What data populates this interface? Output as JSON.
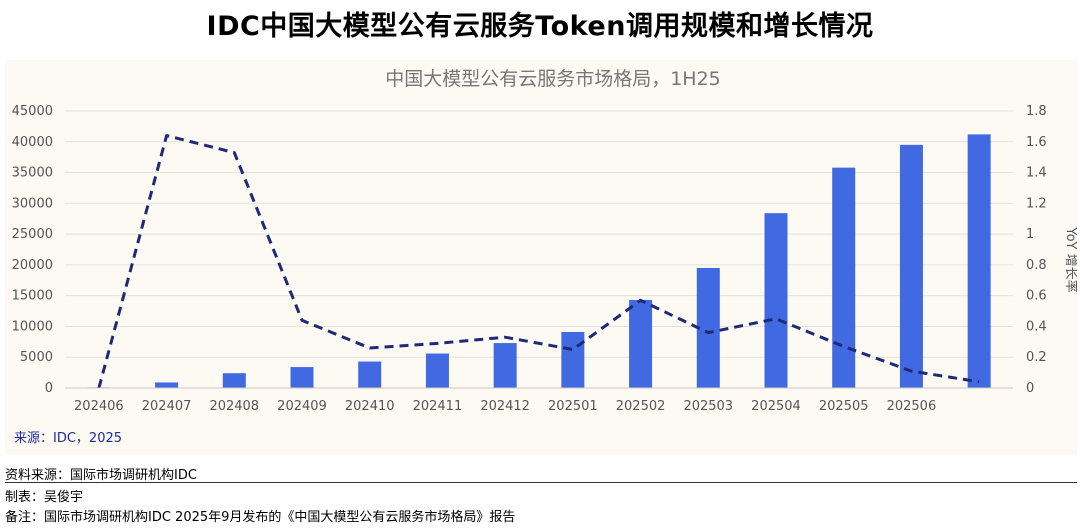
{
  "page_title": "IDC中国大模型公有云服务Token调用规模和增长情况",
  "chart_data": {
    "type": "bar+line",
    "title": "中国大模型公有云服务市场格局，1H25",
    "categories": [
      "202406",
      "202407",
      "202408",
      "202409",
      "202410",
      "202411",
      "202412",
      "202501",
      "202502",
      "202503",
      "202504",
      "202505",
      "202506",
      ""
    ],
    "series": [
      {
        "name": "Token调用规模",
        "type": "bar",
        "axis": "left",
        "color": "#4169e1",
        "values": [
          100,
          900,
          2400,
          3400,
          4300,
          5600,
          7300,
          9100,
          14300,
          19500,
          28400,
          35800,
          39500,
          41200
        ]
      },
      {
        "name": "YoY 增长率",
        "type": "line",
        "style": "dashed",
        "axis": "right",
        "color": "#1e2a78",
        "values": [
          0,
          1.64,
          1.53,
          0.44,
          0.26,
          0.29,
          0.33,
          0.25,
          0.57,
          0.36,
          0.45,
          0.27,
          0.11,
          0.04
        ]
      }
    ],
    "y_left": {
      "min": 0,
      "max": 45000,
      "ticks": [
        0,
        5000,
        10000,
        15000,
        20000,
        25000,
        30000,
        35000,
        40000,
        45000
      ]
    },
    "y_right": {
      "min": 0,
      "max": 1.8,
      "ticks": [
        "0",
        "0.2",
        "0.4",
        "0.6",
        "0.8",
        "1",
        "1.2",
        "1.4",
        "1.6",
        "1.8"
      ],
      "label": "YoY 增长率"
    },
    "source_label": "来源：IDC，2025",
    "gridlines": true
  },
  "footer": {
    "source": "资料来源：国际市场调研机构IDC",
    "author": "制表：吴俊宇",
    "remark": "备注：国际市场调研机构IDC 2025年9月发布的《中国大模型公有云服务市场格局》报告"
  }
}
